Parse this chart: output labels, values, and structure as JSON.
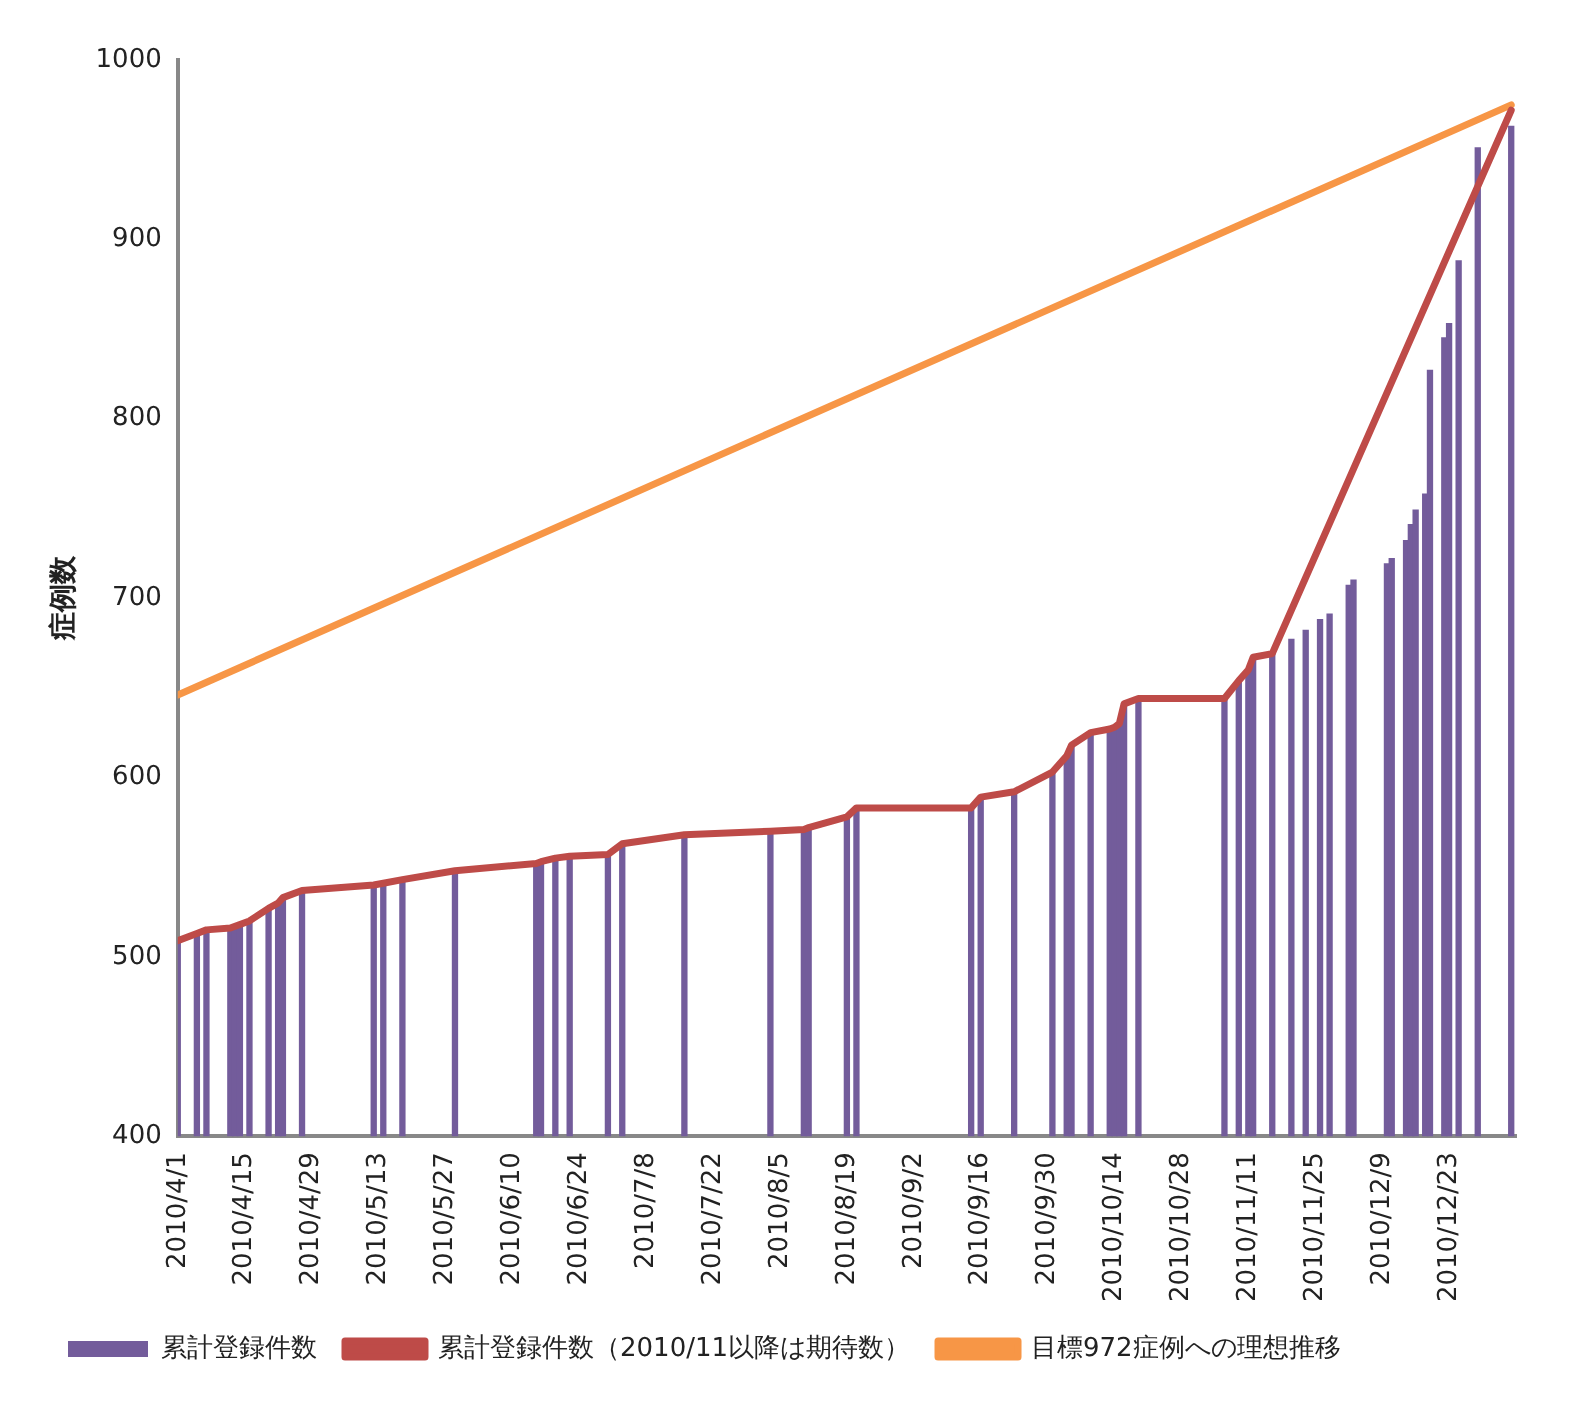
{
  "chart_data": {
    "type": "bar",
    "ylabel": "症例数",
    "ylim": [
      400,
      1000
    ],
    "yticks": [
      400,
      500,
      600,
      700,
      800,
      900,
      1000
    ],
    "xlim": [
      "2010-04-01",
      "2011-01-06"
    ],
    "xticks": [
      {
        "value": "2010-04-01",
        "label": "2010/4/1"
      },
      {
        "value": "2010-04-15",
        "label": "2010/4/15"
      },
      {
        "value": "2010-04-29",
        "label": "2010/4/29"
      },
      {
        "value": "2010-05-13",
        "label": "2010/5/13"
      },
      {
        "value": "2010-05-27",
        "label": "2010/5/27"
      },
      {
        "value": "2010-06-10",
        "label": "2010/6/10"
      },
      {
        "value": "2010-06-24",
        "label": "2010/6/24"
      },
      {
        "value": "2010-07-08",
        "label": "2010/7/8"
      },
      {
        "value": "2010-07-22",
        "label": "2010/7/22"
      },
      {
        "value": "2010-08-05",
        "label": "2010/8/5"
      },
      {
        "value": "2010-08-19",
        "label": "2010/8/19"
      },
      {
        "value": "2010-09-02",
        "label": "2010/9/2"
      },
      {
        "value": "2010-09-16",
        "label": "2010/9/16"
      },
      {
        "value": "2010-09-30",
        "label": "2010/9/30"
      },
      {
        "value": "2010-10-14",
        "label": "2010/10/14"
      },
      {
        "value": "2010-10-28",
        "label": "2010/10/28"
      },
      {
        "value": "2010-11-11",
        "label": "2010/11/11"
      },
      {
        "value": "2010-11-25",
        "label": "2010/11/25"
      },
      {
        "value": "2010-12-09",
        "label": "2010/12/9"
      },
      {
        "value": "2010-12-23",
        "label": "2010/12/23"
      }
    ],
    "grid": false,
    "legend": "bottom",
    "marker": "none",
    "series": [
      {
        "name": "累計登録件数",
        "color": "#735c9b",
        "x": [
          "2010-04-01",
          "2010-04-05",
          "2010-04-07",
          "2010-04-12",
          "2010-04-13",
          "2010-04-14",
          "2010-04-16",
          "2010-04-20",
          "2010-04-22",
          "2010-04-23",
          "2010-04-27",
          "2010-05-12",
          "2010-05-14",
          "2010-05-18",
          "2010-05-29",
          "2010-06-15",
          "2010-06-16",
          "2010-06-19",
          "2010-06-22",
          "2010-06-30",
          "2010-07-03",
          "2010-07-16",
          "2010-08-03",
          "2010-08-10",
          "2010-08-11",
          "2010-08-19",
          "2010-08-21",
          "2010-09-14",
          "2010-09-16",
          "2010-09-23",
          "2010-10-01",
          "2010-10-04",
          "2010-10-05",
          "2010-10-09",
          "2010-10-13",
          "2010-10-14",
          "2010-10-15",
          "2010-10-16",
          "2010-10-19",
          "2010-11-06",
          "2010-11-09",
          "2010-11-11",
          "2010-11-12",
          "2010-11-16",
          "2010-11-20",
          "2010-11-23",
          "2010-11-26",
          "2010-11-28",
          "2010-12-02",
          "2010-12-03",
          "2010-12-10",
          "2010-12-11",
          "2010-12-14",
          "2010-12-15",
          "2010-12-16",
          "2010-12-18",
          "2010-12-19",
          "2010-12-22",
          "2010-12-23",
          "2010-12-25",
          "2010-12-29",
          "2011-01-05"
        ],
        "values": [
          509,
          513,
          515,
          516,
          517,
          518,
          520,
          527,
          530,
          533,
          537,
          540,
          541,
          543,
          548,
          552,
          553,
          555,
          556,
          557,
          563,
          568,
          570,
          571,
          572,
          578,
          583,
          583,
          589,
          592,
          603,
          612,
          618,
          625,
          627,
          628,
          630,
          641,
          644,
          644,
          654,
          660,
          667,
          669,
          677,
          682,
          688,
          691,
          707,
          710,
          719,
          722,
          732,
          741,
          749,
          758,
          827,
          845,
          853,
          888,
          951,
          963
        ]
      },
      {
        "name": "累計登録件数（2010/11以降は期待数）",
        "type": "line",
        "color": "#be4b48",
        "x": [
          "2010-04-01",
          "2010-04-05",
          "2010-04-07",
          "2010-04-12",
          "2010-04-13",
          "2010-04-14",
          "2010-04-16",
          "2010-04-20",
          "2010-04-22",
          "2010-04-23",
          "2010-04-27",
          "2010-05-12",
          "2010-05-14",
          "2010-05-18",
          "2010-05-29",
          "2010-06-15",
          "2010-06-16",
          "2010-06-19",
          "2010-06-22",
          "2010-06-30",
          "2010-07-03",
          "2010-07-16",
          "2010-08-03",
          "2010-08-10",
          "2010-08-11",
          "2010-08-19",
          "2010-08-21",
          "2010-09-14",
          "2010-09-16",
          "2010-09-23",
          "2010-10-01",
          "2010-10-04",
          "2010-10-05",
          "2010-10-09",
          "2010-10-13",
          "2010-10-14",
          "2010-10-15",
          "2010-10-16",
          "2010-10-19",
          "2010-11-06",
          "2010-11-09",
          "2010-11-11",
          "2010-11-12",
          "2010-11-16",
          "2011-01-05"
        ],
        "values": [
          509,
          513,
          515,
          516,
          517,
          518,
          520,
          527,
          530,
          533,
          537,
          540,
          541,
          543,
          548,
          552,
          553,
          555,
          556,
          557,
          563,
          568,
          570,
          571,
          572,
          578,
          583,
          583,
          589,
          592,
          603,
          612,
          618,
          625,
          627,
          628,
          630,
          641,
          644,
          644,
          654,
          660,
          667,
          669,
          972
        ]
      },
      {
        "name": "目標972症例への理想推移",
        "type": "line",
        "color": "#f79646",
        "x": [
          "2010-04-01",
          "2011-01-05"
        ],
        "values": [
          646,
          975
        ]
      }
    ]
  }
}
